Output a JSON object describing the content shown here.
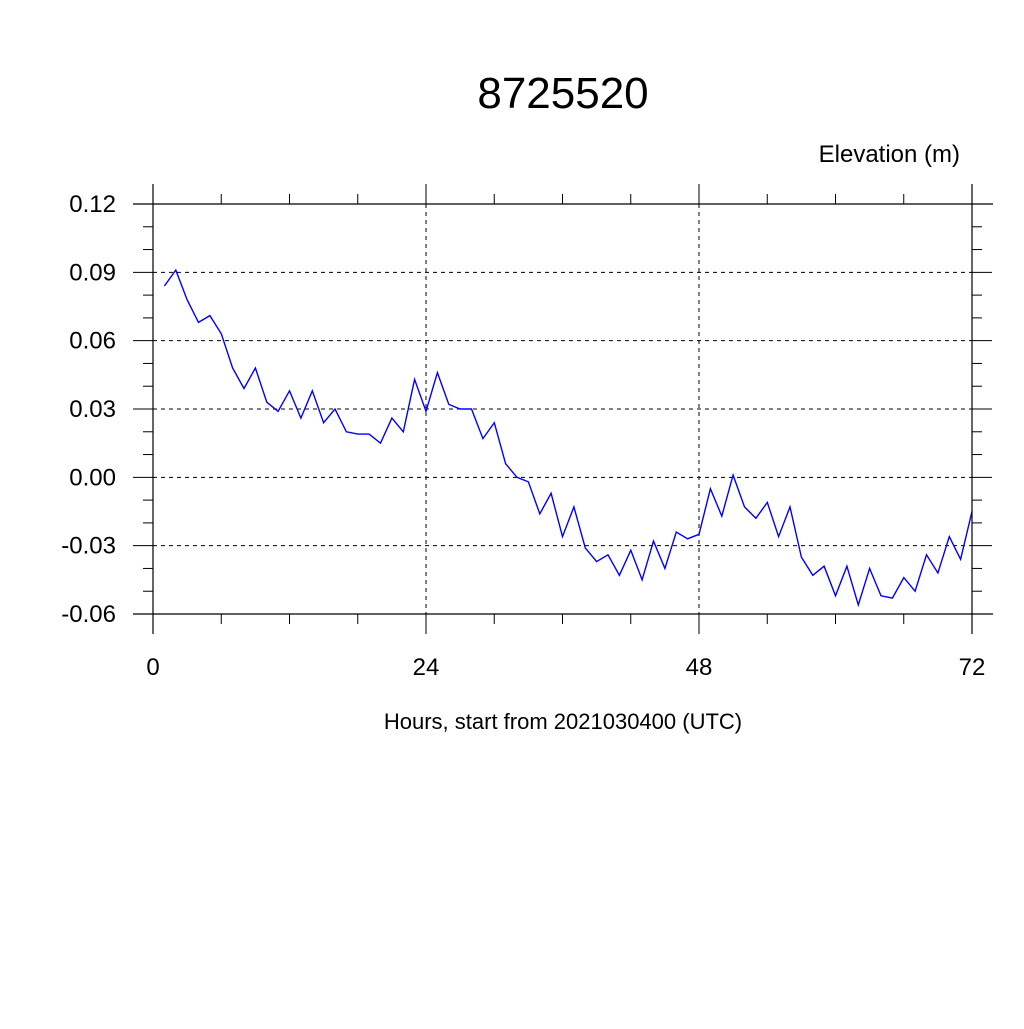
{
  "chart_data": {
    "type": "line",
    "title": "8725520",
    "subtitle": "Elevation (m)",
    "xlabel": "Hours, start from 2021030400 (UTC)",
    "ylabel": "",
    "xlim": [
      0,
      72
    ],
    "ylim": [
      -0.06,
      0.12
    ],
    "x_ticks": [
      0,
      24,
      48,
      72
    ],
    "x_tick_labels": [
      "0",
      "24",
      "48",
      "72"
    ],
    "y_ticks": [
      -0.06,
      -0.03,
      0.0,
      0.03,
      0.06,
      0.09,
      0.12
    ],
    "y_tick_labels": [
      "-0.06",
      "-0.03",
      "0.00",
      "0.03",
      "0.06",
      "0.09",
      "0.12"
    ],
    "grid": true,
    "grid_style": "dashed",
    "series_color": "#0000ff",
    "series": [
      {
        "x": [
          1,
          2,
          3,
          4,
          5,
          6,
          7,
          8,
          9,
          10,
          11,
          12,
          13,
          14,
          15,
          16,
          17,
          18,
          19,
          20,
          21,
          22,
          23,
          24,
          25,
          26,
          27,
          28,
          29,
          30,
          31,
          32,
          33,
          34,
          35,
          36,
          37,
          38,
          39,
          40,
          41,
          42,
          43,
          44,
          45,
          46,
          47,
          48,
          49,
          50,
          51,
          52,
          53,
          54,
          55,
          56,
          57,
          58,
          59,
          60,
          61,
          62,
          63,
          64,
          65,
          66,
          67,
          68,
          69,
          70,
          71,
          72
        ],
        "values": [
          0.084,
          0.091,
          0.078,
          0.068,
          0.071,
          0.063,
          0.048,
          0.039,
          0.048,
          0.033,
          0.029,
          0.038,
          0.026,
          0.038,
          0.024,
          0.03,
          0.02,
          0.019,
          0.019,
          0.015,
          0.026,
          0.02,
          0.043,
          0.029,
          0.046,
          0.032,
          0.03,
          0.03,
          0.017,
          0.024,
          0.006,
          0.0,
          -0.002,
          -0.016,
          -0.007,
          -0.026,
          -0.013,
          -0.031,
          -0.037,
          -0.034,
          -0.043,
          -0.032,
          -0.045,
          -0.028,
          -0.04,
          -0.024,
          -0.027,
          -0.025,
          -0.005,
          -0.017,
          0.001,
          -0.013,
          -0.018,
          -0.011,
          -0.026,
          -0.013,
          -0.035,
          -0.043,
          -0.039,
          -0.052,
          -0.039,
          -0.056,
          -0.04,
          -0.052,
          -0.053,
          -0.044,
          -0.05,
          -0.034,
          -0.042,
          -0.026,
          -0.036,
          -0.015
        ]
      }
    ]
  }
}
